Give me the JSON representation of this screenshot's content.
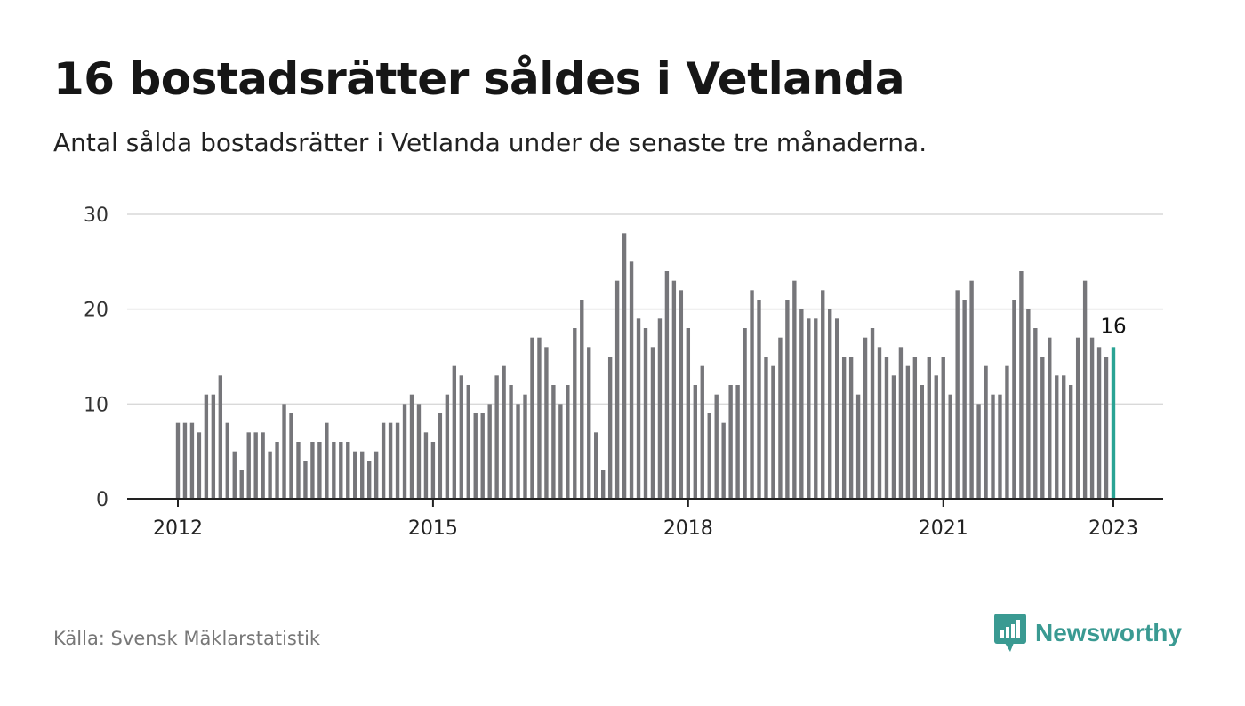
{
  "header": {
    "title": "16 bostadsrätter såldes i Vetlanda",
    "subtitle": "Antal sålda bostadsrätter i Vetlanda under de senaste tre månaderna."
  },
  "footer": {
    "source": "Källa: Svensk Mäklarstatistik",
    "brand": "Newsworthy",
    "brand_icon": "bar-chart-speech-icon"
  },
  "colors": {
    "bar": "#76767a",
    "highlight": "#2aa394",
    "grid": "#d9d9d9",
    "axis": "#222222",
    "brand": "#3a9a92"
  },
  "chart_data": {
    "type": "bar",
    "title": "16 bostadsrätter såldes i Vetlanda",
    "subtitle": "Antal sålda bostadsrätter i Vetlanda under de senaste tre månaderna.",
    "x_start": "2012-01",
    "x_end": "2023-01",
    "frequency": "monthly",
    "xticks": [
      "2012",
      "2015",
      "2018",
      "2021",
      "2023"
    ],
    "yticks": [
      0,
      10,
      20,
      30
    ],
    "ylim": [
      0,
      30
    ],
    "grid": true,
    "highlight_label": "16",
    "values": [
      8,
      8,
      8,
      7,
      11,
      11,
      13,
      8,
      5,
      3,
      7,
      7,
      7,
      5,
      6,
      10,
      9,
      6,
      4,
      6,
      6,
      8,
      6,
      6,
      6,
      5,
      5,
      4,
      5,
      8,
      8,
      8,
      10,
      11,
      10,
      7,
      6,
      9,
      11,
      14,
      13,
      12,
      9,
      9,
      10,
      13,
      14,
      12,
      10,
      11,
      17,
      17,
      16,
      12,
      10,
      12,
      18,
      21,
      16,
      7,
      3,
      15,
      23,
      28,
      25,
      19,
      18,
      16,
      19,
      24,
      23,
      22,
      18,
      12,
      14,
      9,
      11,
      8,
      12,
      12,
      18,
      22,
      21,
      15,
      14,
      17,
      21,
      23,
      20,
      19,
      19,
      22,
      20,
      19,
      15,
      15,
      11,
      17,
      18,
      16,
      15,
      13,
      16,
      14,
      15,
      12,
      15,
      13,
      15,
      11,
      22,
      21,
      23,
      10,
      14,
      11,
      11,
      14,
      21,
      24,
      20,
      18,
      15,
      17,
      13,
      13,
      12,
      17,
      23,
      17,
      16,
      15,
      16
    ]
  }
}
